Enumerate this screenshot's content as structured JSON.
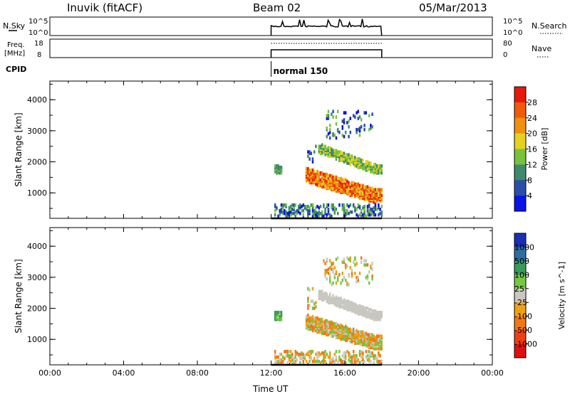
{
  "header": {
    "station": "Inuvik (fitACF)",
    "beam": "Beam 02",
    "date": "05/Mar/2013"
  },
  "top_panels": {
    "nsky_label": "N.Sky",
    "nsky_ticks": [
      "10^5",
      "10^0"
    ],
    "nsearch_label": "N.Search",
    "nsearch_ticks": [
      "10^5",
      "10^0"
    ],
    "freq_label_1": "Freq.",
    "freq_label_2": "[MHz]",
    "freq_ticks": [
      "18",
      "8"
    ],
    "nave_label": "Nave",
    "nave_ticks": [
      "80",
      "0"
    ],
    "cpid_label": "CPID",
    "cpid_value": "normal 150"
  },
  "chart_data": [
    {
      "type": "heatmap",
      "name": "power",
      "ylabel": "Slant Range [km]",
      "xlabel": "Time UT",
      "x_ticks": [
        "00:00",
        "04:00",
        "08:00",
        "12:00",
        "16:00",
        "20:00",
        "00:00"
      ],
      "y_ticks": [
        "1000",
        "2000",
        "3000",
        "4000"
      ],
      "ylim": [
        180,
        4600
      ],
      "xlim_hours": [
        0,
        24
      ],
      "data_start_hour": 12,
      "data_end_hour": 18,
      "colorbar_label": "Power [dB]",
      "colorbar_ticks": [
        "4",
        "8",
        "12",
        "16",
        "20",
        "24",
        "28"
      ],
      "colorbar_colors": [
        "#0a14e6",
        "#2b4fa8",
        "#3e8a6b",
        "#78c23e",
        "#e6d21e",
        "#f0900f",
        "#f05a0a",
        "#e61a0a"
      ]
    },
    {
      "type": "heatmap",
      "name": "velocity",
      "ylabel": "Slant Range [km]",
      "xlabel": "Time UT",
      "x_ticks": [
        "00:00",
        "04:00",
        "08:00",
        "12:00",
        "16:00",
        "20:00",
        "00:00"
      ],
      "y_ticks": [
        "1000",
        "2000",
        "3000",
        "4000"
      ],
      "ylim": [
        180,
        4600
      ],
      "xlim_hours": [
        0,
        24
      ],
      "data_start_hour": 12,
      "data_end_hour": 18,
      "colorbar_label": "Velocity [m s^-1]",
      "colorbar_ticks": [
        "1000",
        "500",
        "100",
        "25",
        "-25",
        "-100",
        "-500",
        "-1000"
      ],
      "colorbar_colors": [
        "#1a2fb4",
        "#2c6fa0",
        "#3a9a5c",
        "#74c842",
        "#c8c8c0",
        "#f0a014",
        "#f07814",
        "#f04010",
        "#e01010"
      ]
    }
  ]
}
